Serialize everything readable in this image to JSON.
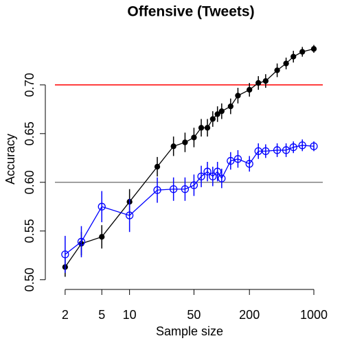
{
  "chart_data": {
    "type": "line",
    "title": "Offensive (Tweets)",
    "x_label": "Sample size",
    "y_label": "Accuracy",
    "x_log": true,
    "x": [
      2,
      3,
      5,
      10,
      20,
      30,
      40,
      50,
      60,
      70,
      80,
      90,
      100,
      125,
      150,
      200,
      250,
      300,
      400,
      500,
      600,
      750,
      1000
    ],
    "series": [
      {
        "name": "black",
        "color": "#000000",
        "marker": "filled",
        "values": [
          0.513,
          0.537,
          0.544,
          0.58,
          0.616,
          0.637,
          0.641,
          0.646,
          0.656,
          0.656,
          0.665,
          0.67,
          0.673,
          0.678,
          0.689,
          0.695,
          0.702,
          0.704,
          0.715,
          0.722,
          0.729,
          0.734,
          0.737
        ],
        "errors": [
          0.01,
          0.012,
          0.012,
          0.013,
          0.01,
          0.01,
          0.01,
          0.01,
          0.009,
          0.009,
          0.008,
          0.008,
          0.008,
          0.008,
          0.008,
          0.007,
          0.007,
          0.007,
          0.007,
          0.006,
          0.006,
          0.005,
          0.004
        ]
      },
      {
        "name": "blue",
        "color": "#0000ff",
        "marker": "open",
        "values": [
          0.526,
          0.539,
          0.575,
          0.566,
          0.592,
          0.593,
          0.593,
          0.597,
          0.606,
          0.611,
          0.606,
          0.611,
          0.604,
          0.622,
          0.624,
          0.619,
          0.632,
          0.632,
          0.633,
          0.633,
          0.636,
          0.638,
          0.637
        ],
        "errors": [
          0.019,
          0.016,
          0.016,
          0.017,
          0.013,
          0.012,
          0.012,
          0.011,
          0.011,
          0.01,
          0.01,
          0.01,
          0.01,
          0.009,
          0.009,
          0.008,
          0.008,
          0.007,
          0.007,
          0.007,
          0.006,
          0.006,
          0.005
        ]
      }
    ],
    "hlines": [
      {
        "value": 0.7,
        "color": "#ff0000"
      },
      {
        "value": 0.6,
        "color": "#808080"
      }
    ],
    "xlim": [
      1.55,
      1250
    ],
    "ylim": [
      0.49,
      0.74
    ],
    "xticks": [
      2,
      5,
      10,
      50,
      200,
      1000
    ],
    "yticks": [
      {
        "value": 0.5,
        "label": "0.50"
      },
      {
        "value": 0.55,
        "label": "0.55"
      },
      {
        "value": 0.6,
        "label": "0.60"
      },
      {
        "value": 0.65,
        "label": "0.65"
      },
      {
        "value": 0.7,
        "label": "0.70"
      }
    ]
  }
}
